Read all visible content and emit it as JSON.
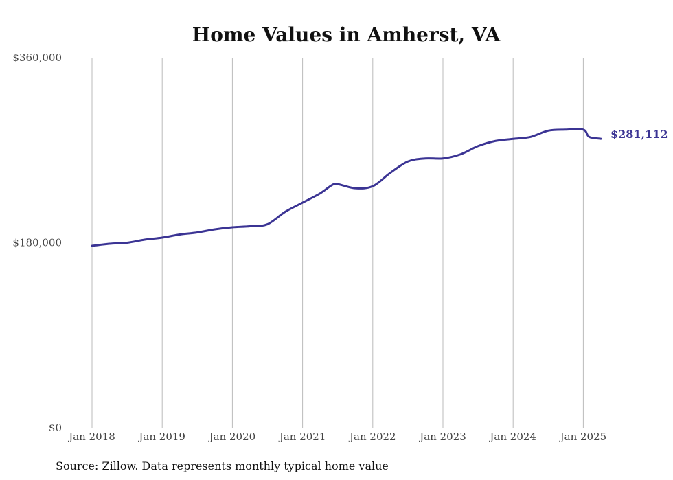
{
  "chart_data": {
    "type": "line",
    "title": "Home Values in Amherst, VA",
    "xlabel": "",
    "ylabel": "",
    "ylim": [
      0,
      360000
    ],
    "yticks": [
      0,
      180000,
      360000
    ],
    "ytick_labels": [
      "$0",
      "$180,000",
      "$360,000"
    ],
    "xtick_labels": [
      "Jan 2018",
      "Jan 2019",
      "Jan 2020",
      "Jan 2021",
      "Jan 2022",
      "Jan 2023",
      "Jan 2024",
      "Jan 2025"
    ],
    "grid": "vertical",
    "line_color": "#3b3494",
    "end_label": "$281,112",
    "series": [
      {
        "x": [
          "2018-01",
          "2018-04",
          "2018-07",
          "2018-10",
          "2019-01",
          "2019-04",
          "2019-07",
          "2019-10",
          "2020-01",
          "2020-04",
          "2020-07",
          "2020-10",
          "2021-01",
          "2021-04",
          "2021-06",
          "2021-07",
          "2021-10",
          "2022-01",
          "2022-04",
          "2022-07",
          "2022-10",
          "2023-01",
          "2023-04",
          "2023-07",
          "2023-10",
          "2024-01",
          "2024-04",
          "2024-07",
          "2024-10",
          "2025-01",
          "2025-02",
          "2025-04"
        ],
        "values": [
          177000,
          179000,
          180000,
          183000,
          185000,
          188000,
          190000,
          193000,
          195000,
          196000,
          198000,
          210000,
          219000,
          228000,
          236000,
          237000,
          233000,
          235000,
          248000,
          259000,
          262000,
          262000,
          266000,
          274000,
          279000,
          281000,
          283000,
          289000,
          290000,
          290000,
          283000,
          281112
        ]
      }
    ]
  },
  "source": "Source: Zillow. Data represents monthly typical home value"
}
